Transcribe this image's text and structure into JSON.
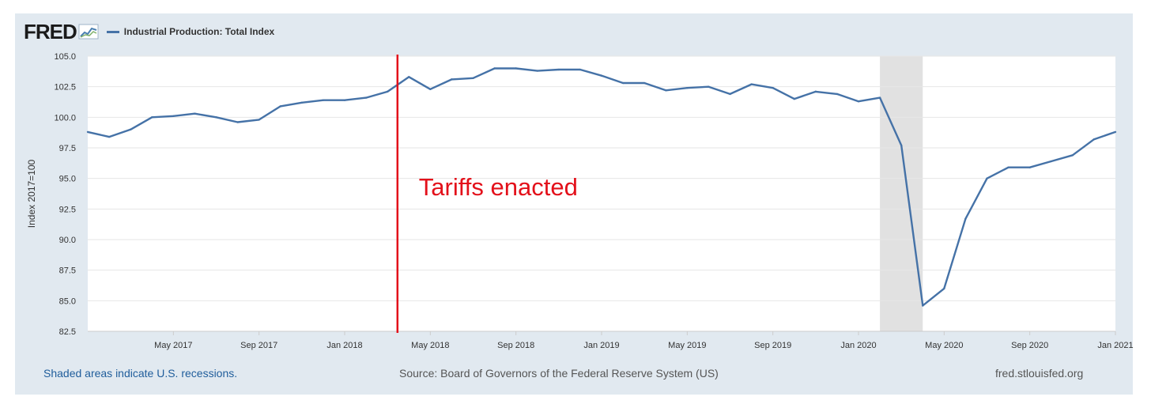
{
  "logo": {
    "text": "FRED"
  },
  "legend": {
    "label": "Industrial Production: Total Index",
    "color": "#4572a7"
  },
  "footer": {
    "recession_note": "Shaded areas indicate U.S. recessions.",
    "source": "Source: Board of Governors of the Federal Reserve System (US)",
    "site": "fred.stlouisfed.org"
  },
  "chart_data": {
    "type": "line",
    "ylabel": "Index 2017=100",
    "ylim": [
      82.5,
      105.0
    ],
    "yticks": [
      "82.5",
      "85.0",
      "87.5",
      "90.0",
      "92.5",
      "95.0",
      "97.5",
      "100.0",
      "102.5",
      "105.0"
    ],
    "xticks": [
      {
        "label": "May 2017",
        "date": "2017-05"
      },
      {
        "label": "Sep 2017",
        "date": "2017-09"
      },
      {
        "label": "Jan 2018",
        "date": "2018-01"
      },
      {
        "label": "May 2018",
        "date": "2018-05"
      },
      {
        "label": "Sep 2018",
        "date": "2018-09"
      },
      {
        "label": "Jan 2019",
        "date": "2019-01"
      },
      {
        "label": "May 2019",
        "date": "2019-05"
      },
      {
        "label": "Sep 2019",
        "date": "2019-09"
      },
      {
        "label": "Jan 2020",
        "date": "2020-01"
      },
      {
        "label": "May 2020",
        "date": "2020-05"
      },
      {
        "label": "Sep 2020",
        "date": "2020-09"
      },
      {
        "label": "Jan 2021",
        "date": "2021-01"
      }
    ],
    "grid": true,
    "series": [
      {
        "name": "Industrial Production: Total Index",
        "color": "#4572a7",
        "x": [
          "2017-01",
          "2017-02",
          "2017-03",
          "2017-04",
          "2017-05",
          "2017-06",
          "2017-07",
          "2017-08",
          "2017-09",
          "2017-10",
          "2017-11",
          "2017-12",
          "2018-01",
          "2018-02",
          "2018-03",
          "2018-04",
          "2018-05",
          "2018-06",
          "2018-07",
          "2018-08",
          "2018-09",
          "2018-10",
          "2018-11",
          "2018-12",
          "2019-01",
          "2019-02",
          "2019-03",
          "2019-04",
          "2019-05",
          "2019-06",
          "2019-07",
          "2019-08",
          "2019-09",
          "2019-10",
          "2019-11",
          "2019-12",
          "2020-01",
          "2020-02",
          "2020-03",
          "2020-04",
          "2020-05",
          "2020-06",
          "2020-07",
          "2020-08",
          "2020-09",
          "2020-10",
          "2020-11",
          "2020-12",
          "2021-01"
        ],
        "y": [
          98.8,
          98.4,
          99.0,
          100.0,
          100.1,
          100.3,
          100.0,
          99.6,
          99.8,
          100.9,
          101.2,
          101.4,
          101.4,
          101.6,
          102.1,
          103.3,
          102.3,
          103.1,
          103.2,
          104.0,
          104.0,
          103.8,
          103.9,
          103.9,
          103.4,
          102.8,
          102.8,
          102.2,
          102.4,
          102.5,
          101.9,
          102.7,
          102.4,
          101.5,
          102.1,
          101.9,
          101.3,
          101.6,
          97.7,
          84.6,
          86.0,
          91.7,
          95.0,
          95.9,
          95.9,
          96.4,
          96.9,
          98.2,
          98.8
        ]
      }
    ],
    "recession": {
      "start": "2020-02",
      "end": "2020-04",
      "color": "#e1e1e1"
    },
    "annotation": {
      "text": "Tariffs enacted",
      "date": "2018-03-15",
      "color": "#e3101a"
    }
  }
}
